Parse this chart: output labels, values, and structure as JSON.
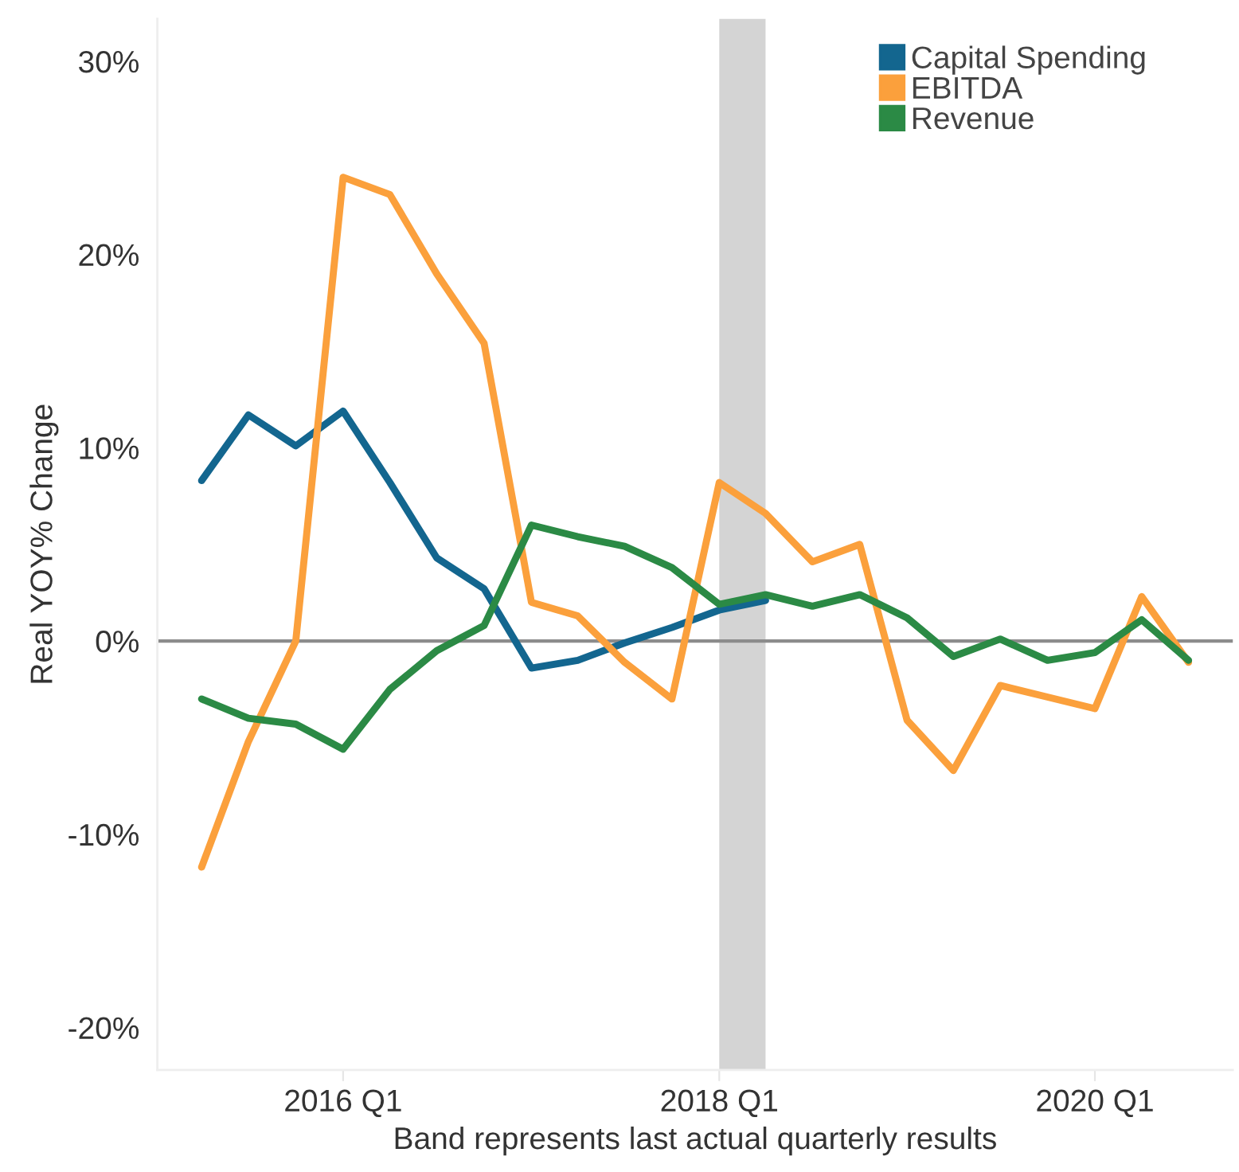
{
  "chart_data": {
    "type": "line",
    "xlabel": "Band represents last actual quarterly results",
    "ylabel": "Real YOY% Change",
    "x": [
      "2015-04",
      "2015-07",
      "2015-10",
      "2016-01",
      "2016-04",
      "2016-07",
      "2016-10",
      "2017-01",
      "2017-04",
      "2017-07",
      "2017-10",
      "2018-01",
      "2018-04",
      "2018-07",
      "2018-10",
      "2019-01",
      "2019-04",
      "2019-07",
      "2019-10",
      "2020-01",
      "2020-04",
      "2020-07"
    ],
    "series": [
      {
        "name": "Capital Spending",
        "color": "#13668f",
        "values": [
          8.3,
          11.7,
          10.1,
          11.9,
          8.2,
          4.3,
          2.7,
          -1.4,
          -1.0,
          -0.1,
          0.7,
          1.6,
          2.1,
          null,
          null,
          null,
          null,
          null,
          null,
          null,
          null,
          null
        ]
      },
      {
        "name": "EBITDA",
        "color": "#fba03c",
        "values": [
          -11.7,
          -5.2,
          0.0,
          24.0,
          23.1,
          19.0,
          15.4,
          2.0,
          1.3,
          -1.1,
          -3.0,
          8.2,
          6.6,
          4.1,
          5.0,
          -4.1,
          -6.7,
          -2.3,
          -2.9,
          -3.5,
          2.3,
          -1.1
        ]
      },
      {
        "name": "Revenue",
        "color": "#2b8a45",
        "values": [
          -3.0,
          -4.0,
          -4.3,
          -5.6,
          -2.5,
          -0.5,
          0.8,
          6.0,
          5.4,
          4.9,
          3.8,
          1.9,
          2.4,
          1.8,
          2.4,
          1.2,
          -0.8,
          0.1,
          -1.0,
          -0.6,
          1.1,
          -1.0
        ]
      }
    ],
    "xlim": [
      "2015-01-05",
      "2020-09-25"
    ],
    "xticks": [
      {
        "value": "2016-01",
        "label": "2016 Q1"
      },
      {
        "value": "2018-01",
        "label": "2018 Q1"
      },
      {
        "value": "2020-01",
        "label": "2020 Q1"
      }
    ],
    "ylim": [
      -22.2,
      32.2
    ],
    "yticks": [
      {
        "value": -20,
        "label": "-20%"
      },
      {
        "value": -10,
        "label": "-10%"
      },
      {
        "value": 0,
        "label": "0%"
      },
      {
        "value": 10,
        "label": "10%"
      },
      {
        "value": 20,
        "label": "20%"
      },
      {
        "value": 30,
        "label": "30%"
      }
    ],
    "bands": [
      {
        "axis": "x",
        "from": "2018-01",
        "to": "2018-04",
        "color": "#d4d4d4"
      }
    ],
    "ref_lines": [
      {
        "axis": "y",
        "value": 0,
        "color": "#8c8c8c"
      }
    ],
    "legend": "top right",
    "grid": false,
    "marker": "none",
    "line_style": "solid"
  }
}
